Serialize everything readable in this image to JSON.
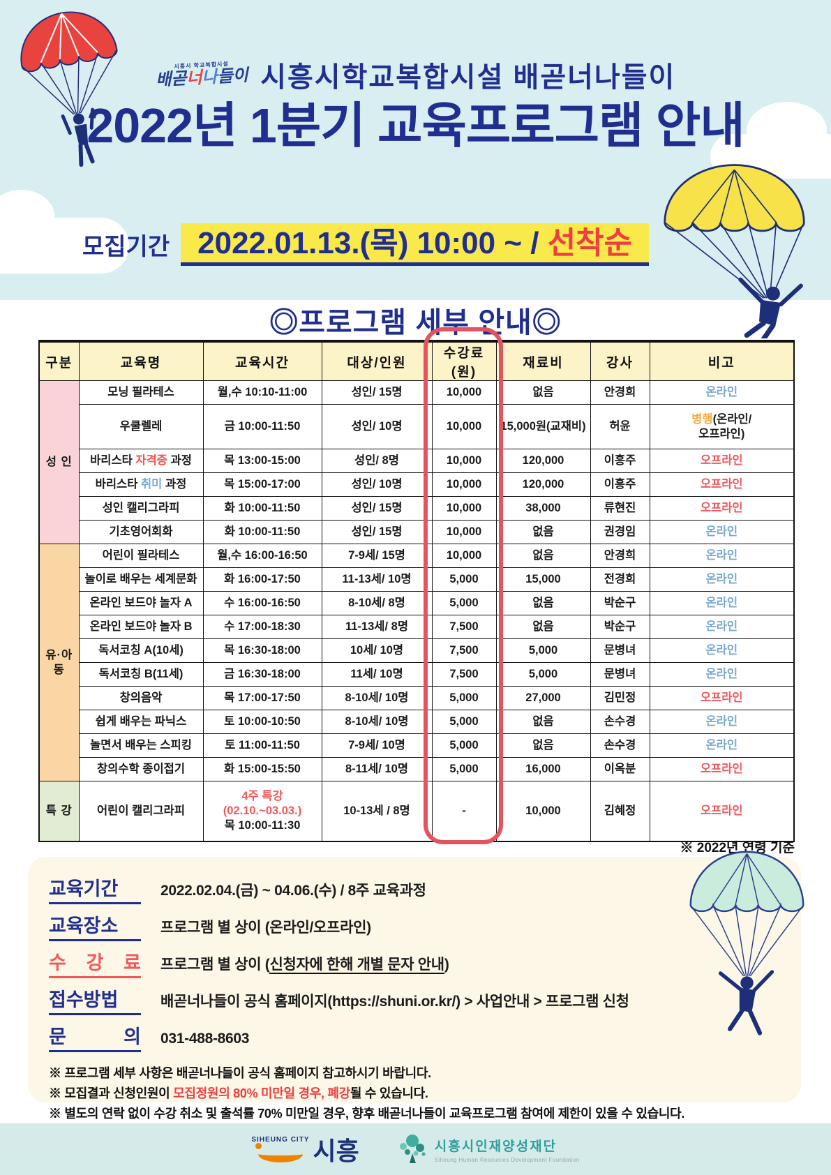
{
  "header": {
    "logo_mini_top": "시흥시 학교복합시설",
    "logo_mini_parts": [
      {
        "t": "배곧"
      },
      {
        "t": "너",
        "c": "red"
      },
      {
        "t": "나",
        "c": "blue"
      },
      {
        "t": "들이"
      }
    ],
    "org_title": "시흥시학교복합시설 배곧너나들이",
    "main_title": "2022년 1분기 교육프로그램 안내"
  },
  "recruit": {
    "label": "모집기간",
    "period": "2022.01.13.(목) 10:00 ~ / ",
    "highlight": "선착순"
  },
  "section_title": "◎프로그램 세부 안내◎",
  "table": {
    "headers": [
      "구분",
      "교육명",
      "교육시간",
      "대상/인원",
      "수강료(원)",
      "재료비",
      "강사",
      "비고"
    ],
    "groups": [
      {
        "label": "성 인",
        "rows": 6,
        "bg": "pink"
      },
      {
        "label": "유·아동",
        "rows": 10,
        "bg": "peach"
      },
      {
        "label": "특 강",
        "rows": 1,
        "bg": "green"
      }
    ],
    "rows": [
      {
        "name": [
          {
            "t": "모닝 필라테스"
          }
        ],
        "time": [
          {
            "t": "월,수 10:10-11:00"
          }
        ],
        "target": "성인/ 15명",
        "fee": "10,000",
        "material": "없음",
        "teacher": "안경희",
        "note": [
          {
            "t": "온라인",
            "c": "blue"
          }
        ]
      },
      {
        "h": "tall",
        "name": [
          {
            "t": "우쿨렐레"
          }
        ],
        "time": [
          {
            "t": "금 10:00-11:50"
          }
        ],
        "target": "성인/ 10명",
        "fee": "10,000",
        "material": "15,000원(교재비)",
        "teacher": "허윤",
        "note": [
          {
            "t": "병행",
            "c": "orange"
          },
          {
            "t": "(온라인/\n오프라인)"
          }
        ]
      },
      {
        "name": [
          {
            "t": "바리스타 "
          },
          {
            "t": "자격증",
            "c": "red"
          },
          {
            "t": " 과정"
          }
        ],
        "time": [
          {
            "t": "목 13:00-15:00"
          }
        ],
        "target": "성인/ 8명",
        "fee": "10,000",
        "material": "120,000",
        "teacher": "이흥주",
        "note": [
          {
            "t": "오프라인",
            "c": "red"
          }
        ]
      },
      {
        "name": [
          {
            "t": "바리스타 "
          },
          {
            "t": "취미",
            "c": "blue"
          },
          {
            "t": " 과정"
          }
        ],
        "time": [
          {
            "t": "목 15:00-17:00"
          }
        ],
        "target": "성인/ 10명",
        "fee": "10,000",
        "material": "120,000",
        "teacher": "이흥주",
        "note": [
          {
            "t": "오프라인",
            "c": "red"
          }
        ]
      },
      {
        "name": [
          {
            "t": "성인 캘리그라피"
          }
        ],
        "time": [
          {
            "t": "화 10:00-11:50"
          }
        ],
        "target": "성인/ 15명",
        "fee": "10,000",
        "material": "38,000",
        "teacher": "류현진",
        "note": [
          {
            "t": "오프라인",
            "c": "red"
          }
        ]
      },
      {
        "name": [
          {
            "t": "기초영어회화"
          }
        ],
        "time": [
          {
            "t": "화 10:00-11:50"
          }
        ],
        "target": "성인/ 15명",
        "fee": "10,000",
        "material": "없음",
        "teacher": "권경임",
        "note": [
          {
            "t": "온라인",
            "c": "blue"
          }
        ]
      },
      {
        "name": [
          {
            "t": "어린이 필라테스"
          }
        ],
        "time": [
          {
            "t": "월,수 16:00-16:50"
          }
        ],
        "target": "7-9세/ 15명",
        "fee": "10,000",
        "material": "없음",
        "teacher": "안경희",
        "note": [
          {
            "t": "온라인",
            "c": "blue"
          }
        ]
      },
      {
        "name": [
          {
            "t": "놀이로 배우는 세계문화"
          }
        ],
        "time": [
          {
            "t": "화 16:00-17:50"
          }
        ],
        "target": "11-13세/ 10명",
        "fee": "5,000",
        "material": "15,000",
        "teacher": "전경희",
        "note": [
          {
            "t": "온라인",
            "c": "blue"
          }
        ]
      },
      {
        "name": [
          {
            "t": "온라인 보드야 놀자 A"
          }
        ],
        "time": [
          {
            "t": "수 16:00-16:50"
          }
        ],
        "target": "8-10세/ 8명",
        "fee": "5,000",
        "material": "없음",
        "teacher": "박순구",
        "note": [
          {
            "t": "온라인",
            "c": "blue"
          }
        ]
      },
      {
        "name": [
          {
            "t": "온라인 보드야 놀자 B"
          }
        ],
        "time": [
          {
            "t": "수 17:00-18:30"
          }
        ],
        "target": "11-13세/ 8명",
        "fee": "7,500",
        "material": "없음",
        "teacher": "박순구",
        "note": [
          {
            "t": "온라인",
            "c": "blue"
          }
        ]
      },
      {
        "name": [
          {
            "t": "독서코칭 A(10세)"
          }
        ],
        "time": [
          {
            "t": "목 16:30-18:00"
          }
        ],
        "target": "10세/ 10명",
        "fee": "7,500",
        "material": "5,000",
        "teacher": "문병녀",
        "note": [
          {
            "t": "온라인",
            "c": "blue"
          }
        ]
      },
      {
        "name": [
          {
            "t": "독서코칭 B(11세)"
          }
        ],
        "time": [
          {
            "t": "금 16:30-18:00"
          }
        ],
        "target": "11세/ 10명",
        "fee": "7,500",
        "material": "5,000",
        "teacher": "문병녀",
        "note": [
          {
            "t": "온라인",
            "c": "blue"
          }
        ]
      },
      {
        "name": [
          {
            "t": "창의음악"
          }
        ],
        "time": [
          {
            "t": "목 17:00-17:50"
          }
        ],
        "target": "8-10세/ 10명",
        "fee": "5,000",
        "material": "27,000",
        "teacher": "김민정",
        "note": [
          {
            "t": "오프라인",
            "c": "red"
          }
        ]
      },
      {
        "name": [
          {
            "t": "쉽게 배우는 파닉스"
          }
        ],
        "time": [
          {
            "t": "토 10:00-10:50"
          }
        ],
        "target": "8-10세/ 10명",
        "fee": "5,000",
        "material": "없음",
        "teacher": "손수경",
        "note": [
          {
            "t": "온라인",
            "c": "blue"
          }
        ]
      },
      {
        "name": [
          {
            "t": "놀면서 배우는 스피킹"
          }
        ],
        "time": [
          {
            "t": "토 11:00-11:50"
          }
        ],
        "target": "7-9세/ 10명",
        "fee": "5,000",
        "material": "없음",
        "teacher": "손수경",
        "note": [
          {
            "t": "온라인",
            "c": "blue"
          }
        ]
      },
      {
        "name": [
          {
            "t": "창의수학 종이접기"
          }
        ],
        "time": [
          {
            "t": "화 15:00-15:50"
          }
        ],
        "target": "8-11세/ 10명",
        "fee": "5,000",
        "material": "16,000",
        "teacher": "이옥분",
        "note": [
          {
            "t": "오프라인",
            "c": "red"
          }
        ]
      },
      {
        "h": "xtall",
        "name": [
          {
            "t": "어린이 캘리그라피"
          }
        ],
        "time": [
          {
            "t": "4주 특강 (02.10.~03.03.)\n",
            "c": "red"
          },
          {
            "t": "목 10:00-11:30"
          }
        ],
        "target": "10-13세 / 8명",
        "fee": "-",
        "material": "10,000",
        "teacher": "김혜정",
        "note": [
          {
            "t": "오프라인",
            "c": "red"
          }
        ]
      }
    ]
  },
  "age_note": "※ 2022년 연령 기준",
  "info": {
    "items": [
      {
        "label": "교육기간",
        "accent": "navy",
        "value": [
          {
            "t": "2022.02.04.(금) ~ 04.06.(수) / 8주 교육과정"
          }
        ]
      },
      {
        "label": "교육장소",
        "accent": "navy",
        "value": [
          {
            "t": "프로그램 별 상이 (온라인/오프라인)"
          }
        ]
      },
      {
        "label": "수 강 료",
        "accent": "red",
        "value": [
          {
            "t": "프로그램 별 상이 ("
          },
          {
            "t": "신청자에 한해 개별 문자 안내",
            "u": true
          },
          {
            "t": ")"
          }
        ]
      },
      {
        "label": "접수방법",
        "accent": "navy",
        "value": [
          {
            "t": "배곧너나들이 공식 홈페이지"
          },
          {
            "t": "(https://shuni.or.kr/)",
            "b": true
          },
          {
            "t": " > 사업안내 > 프로그램 신청"
          }
        ]
      },
      {
        "label": "문　　의",
        "accent": "navy",
        "value": [
          {
            "t": "031-488-8603"
          }
        ]
      }
    ],
    "notes": [
      [
        {
          "t": "※ 프로그램 세부 사항은 배곧너나들이 공식 홈페이지 참고하시기 바랍니다."
        }
      ],
      [
        {
          "t": "※ 모집결과 신청인원이 "
        },
        {
          "t": "모집정원의 80% 미만일 경우, 폐강",
          "c": "red"
        },
        {
          "t": "될 수 있습니다."
        }
      ],
      [
        {
          "t": "※ 별도의 연락 없이 수강 취소 및 출석률 70% 미만일 경우, 향후 배곧너나들이 교육프로그램 참여에 제한이 있을 수 있습니다."
        }
      ]
    ]
  },
  "footer": {
    "siheung_en": "SIHEUNG CITY",
    "siheung_kr": "시흥",
    "foundation_kr": "시흥시인재양성재단",
    "foundation_en": "Siheung Human Resources Development Foundation"
  },
  "colors": {
    "navy": "#202f8f",
    "sky": "#d9eef1",
    "highlight_yellow": "#fae94b",
    "accent_red": "#ee3e41",
    "table_header_yellow": "#fdf3c9",
    "group_pink": "#fad3d7",
    "group_peach": "#fbd6a5",
    "group_green": "#e1ecd3",
    "online_blue": "#79a8d3",
    "offline_red": "#f2575c",
    "both_orange": "#f6a83c",
    "panel_cream": "#fcf7e6",
    "footer_teal": "#d5ebe9"
  }
}
